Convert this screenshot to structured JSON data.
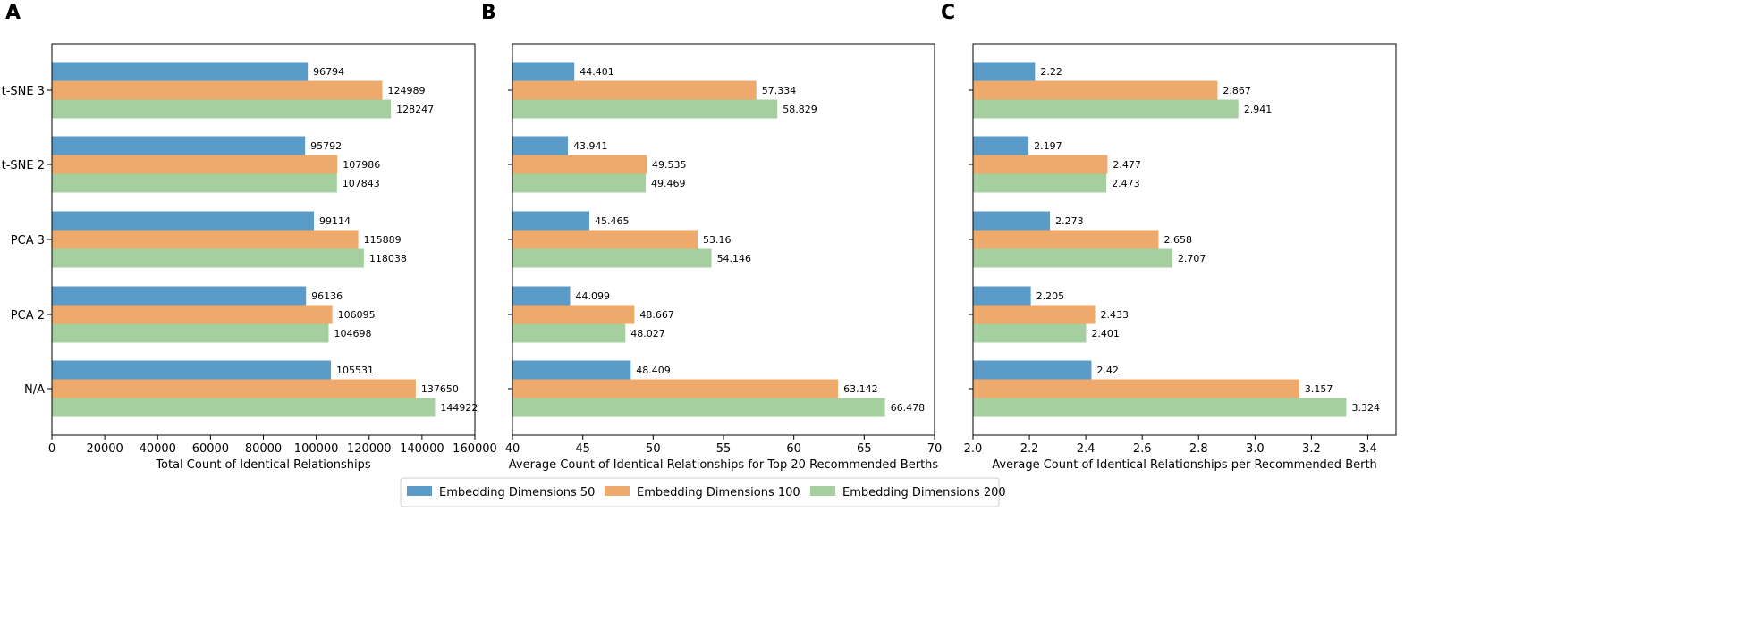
{
  "panel_letters": [
    "A",
    "B",
    "C"
  ],
  "legend": {
    "entries": [
      "Embedding Dimensions 50",
      "Embedding Dimensions 100",
      "Embedding Dimensions 200"
    ]
  },
  "colors": {
    "Embedding Dimensions 50": "#5b9bc7",
    "Embedding Dimensions 100": "#eeaa6d",
    "Embedding Dimensions 200": "#a6cfa0"
  },
  "chart_data": [
    {
      "type": "bar",
      "orientation": "horizontal",
      "panel": "A",
      "categories": [
        "t-SNE 3",
        "t-SNE 2",
        "PCA 3",
        "PCA 2",
        "N/A"
      ],
      "series": [
        {
          "name": "Embedding Dimensions 50",
          "values": [
            96794,
            95792,
            99114,
            96136,
            105531
          ],
          "labels": [
            "96794",
            "95792",
            "99114",
            "96136",
            "105531"
          ]
        },
        {
          "name": "Embedding Dimensions 100",
          "values": [
            124989,
            107986,
            115889,
            106095,
            137650
          ],
          "labels": [
            "124989",
            "107986",
            "115889",
            "106095",
            "137650"
          ]
        },
        {
          "name": "Embedding Dimensions 200",
          "values": [
            128247,
            107843,
            118038,
            104698,
            144922
          ],
          "labels": [
            "128247",
            "107843",
            "118038",
            "104698",
            "144922"
          ]
        }
      ],
      "xlabel": "Total Count of Identical Relationships",
      "xlim": [
        0,
        160000
      ],
      "xticks": [
        0,
        20000,
        40000,
        60000,
        80000,
        100000,
        120000,
        140000,
        160000
      ],
      "xtick_labels": [
        "0",
        "20000",
        "40000",
        "60000",
        "80000",
        "100000",
        "120000",
        "140000",
        "160000"
      ]
    },
    {
      "type": "bar",
      "orientation": "horizontal",
      "panel": "B",
      "categories": [
        "t-SNE 3",
        "t-SNE 2",
        "PCA 3",
        "PCA 2",
        "N/A"
      ],
      "series": [
        {
          "name": "Embedding Dimensions 50",
          "values": [
            44.401,
            43.941,
            45.465,
            44.099,
            48.409
          ],
          "labels": [
            "44.401",
            "43.941",
            "45.465",
            "44.099",
            "48.409"
          ]
        },
        {
          "name": "Embedding Dimensions 100",
          "values": [
            57.334,
            49.535,
            53.16,
            48.667,
            63.142
          ],
          "labels": [
            "57.334",
            "49.535",
            "53.16",
            "48.667",
            "63.142"
          ]
        },
        {
          "name": "Embedding Dimensions 200",
          "values": [
            58.829,
            49.469,
            54.146,
            48.027,
            66.478
          ],
          "labels": [
            "58.829",
            "49.469",
            "54.146",
            "48.027",
            "66.478"
          ]
        }
      ],
      "xlabel": "Average Count of Identical Relationships for Top 20 Recommended Berths",
      "xlim": [
        40,
        70
      ],
      "xticks": [
        40,
        45,
        50,
        55,
        60,
        65,
        70
      ],
      "xtick_labels": [
        "40",
        "45",
        "50",
        "55",
        "60",
        "65",
        "70"
      ]
    },
    {
      "type": "bar",
      "orientation": "horizontal",
      "panel": "C",
      "categories": [
        "t-SNE 3",
        "t-SNE 2",
        "PCA 3",
        "PCA 2",
        "N/A"
      ],
      "series": [
        {
          "name": "Embedding Dimensions 50",
          "values": [
            2.22,
            2.197,
            2.273,
            2.205,
            2.42
          ],
          "labels": [
            "2.22",
            "2.197",
            "2.273",
            "2.205",
            "2.42"
          ]
        },
        {
          "name": "Embedding Dimensions 100",
          "values": [
            2.867,
            2.477,
            2.658,
            2.433,
            3.157
          ],
          "labels": [
            "2.867",
            "2.477",
            "2.658",
            "2.433",
            "3.157"
          ]
        },
        {
          "name": "Embedding Dimensions 200",
          "values": [
            2.941,
            2.473,
            2.707,
            2.401,
            3.324
          ],
          "labels": [
            "2.941",
            "2.473",
            "2.707",
            "2.401",
            "3.324"
          ]
        }
      ],
      "xlabel": "Average Count of Identical Relationships per Recommended Berth",
      "xlim": [
        2.0,
        3.5
      ],
      "xticks": [
        2.0,
        2.2,
        2.4,
        2.6,
        2.8,
        3.0,
        3.2,
        3.4
      ],
      "xtick_labels": [
        "2.0",
        "2.2",
        "2.4",
        "2.6",
        "2.8",
        "3.0",
        "3.2",
        "3.4"
      ]
    }
  ]
}
